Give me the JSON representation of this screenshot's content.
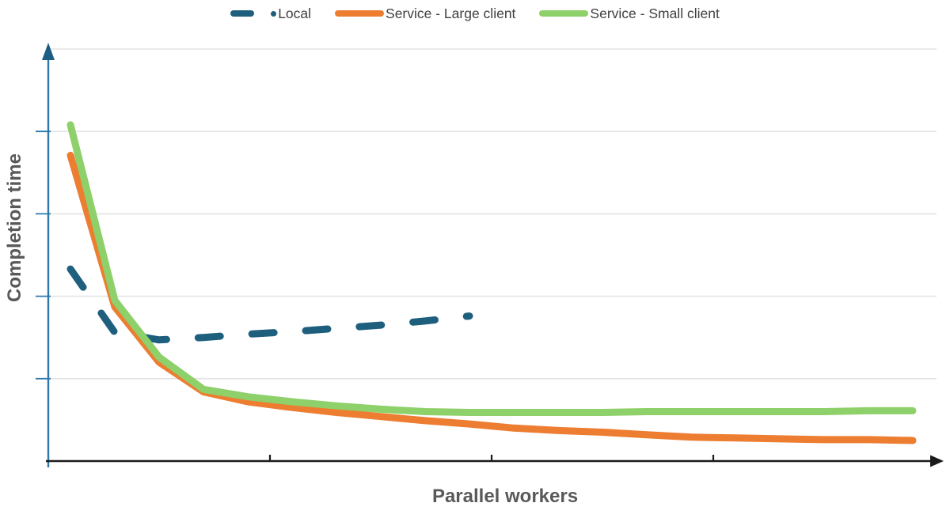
{
  "chart_data": {
    "type": "line",
    "title": "",
    "xlabel": "Parallel workers",
    "ylabel": "Completion time",
    "x_tick_labels_shown": false,
    "y_tick_labels_shown": false,
    "x_point_count": 20,
    "x_axis_tick_every": 5,
    "ylim": [
      0,
      5
    ],
    "grid": "horizontal",
    "legend_position": "top-center",
    "value_unit": "gridline spacing = 1 unit (axes unlabeled, values estimated)",
    "series": [
      {
        "name": "Local",
        "color": "#1F5F7E",
        "line_style": "dashed",
        "values": [
          2.33,
          1.56,
          1.47,
          1.5,
          1.54,
          1.57,
          1.61,
          1.65,
          1.7,
          1.76
        ]
      },
      {
        "name": "Service - Large client",
        "color": "#ED7D31",
        "line_style": "solid",
        "values": [
          3.71,
          1.87,
          1.2,
          0.84,
          0.72,
          0.65,
          0.59,
          0.54,
          0.49,
          0.45,
          0.4,
          0.37,
          0.35,
          0.32,
          0.29,
          0.28,
          0.27,
          0.26,
          0.26,
          0.25
        ]
      },
      {
        "name": "Service - Small client",
        "color": "#8ED069",
        "line_style": "solid",
        "values": [
          4.08,
          1.95,
          1.26,
          0.87,
          0.78,
          0.72,
          0.67,
          0.63,
          0.6,
          0.59,
          0.59,
          0.59,
          0.59,
          0.6,
          0.6,
          0.6,
          0.6,
          0.6,
          0.61,
          0.61
        ]
      }
    ],
    "style_colors": {
      "gridline": "#E3E3E3",
      "y_axis": "#2B79AC",
      "y_axis_arrow": "#1C5E83",
      "x_axis": "#1A1A1A",
      "axis_title_text": "#595959",
      "legend_text": "#404040"
    }
  }
}
